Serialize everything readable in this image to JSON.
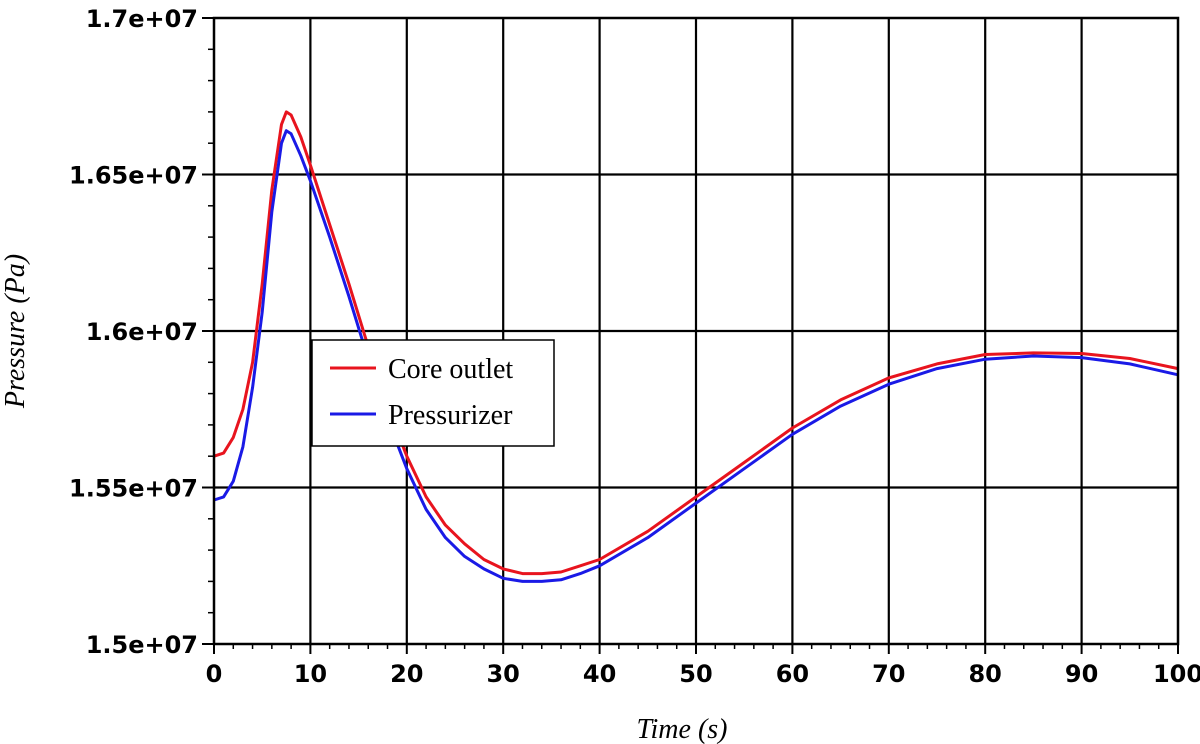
{
  "chart_data": {
    "type": "line",
    "title": "",
    "xlabel": "Time (s)",
    "ylabel": "Pressure (Pa)",
    "xlim": [
      0,
      100
    ],
    "ylim": [
      15000000,
      17000000
    ],
    "x_ticks": [
      0,
      10,
      20,
      30,
      40,
      50,
      60,
      70,
      80,
      90,
      100
    ],
    "x_tick_labels": [
      "0",
      "10",
      "20",
      "30",
      "40",
      "50",
      "60",
      "70",
      "80",
      "90",
      "100"
    ],
    "y_ticks": [
      15000000,
      15500000,
      16000000,
      16500000,
      17000000
    ],
    "y_tick_labels": [
      "1.5e+07",
      "1.55e+07",
      "1.6e+07",
      "1.65e+07",
      "1.7e+07"
    ],
    "grid": true,
    "legend_position": "middle-left",
    "series": [
      {
        "name": "Core outlet",
        "color": "#e8141e",
        "x": [
          0,
          1,
          2,
          3,
          4,
          5,
          6,
          7,
          7.5,
          8,
          9,
          10,
          12,
          14,
          16,
          18,
          20,
          22,
          24,
          26,
          28,
          30,
          32,
          34,
          36,
          38,
          40,
          45,
          50,
          55,
          60,
          65,
          70,
          75,
          80,
          85,
          90,
          95,
          100
        ],
        "y": [
          15600000,
          15610000,
          15660000,
          15750000,
          15900000,
          16150000,
          16450000,
          16660000,
          16700000,
          16690000,
          16620000,
          16530000,
          16340000,
          16150000,
          15950000,
          15760000,
          15600000,
          15470000,
          15380000,
          15320000,
          15270000,
          15240000,
          15225000,
          15225000,
          15230000,
          15250000,
          15270000,
          15360000,
          15470000,
          15580000,
          15690000,
          15780000,
          15850000,
          15895000,
          15925000,
          15930000,
          15928000,
          15912000,
          15880000
        ]
      },
      {
        "name": "Pressurizer",
        "color": "#1a1ae6",
        "x": [
          0,
          1,
          2,
          3,
          4,
          5,
          6,
          7,
          7.5,
          8,
          9,
          10,
          12,
          14,
          16,
          18,
          20,
          22,
          24,
          26,
          28,
          30,
          32,
          34,
          36,
          38,
          40,
          45,
          50,
          55,
          60,
          65,
          70,
          75,
          80,
          85,
          90,
          95,
          100
        ],
        "y": [
          15460000,
          15470000,
          15520000,
          15630000,
          15820000,
          16060000,
          16380000,
          16600000,
          16640000,
          16630000,
          16560000,
          16480000,
          16300000,
          16110000,
          15910000,
          15720000,
          15560000,
          15430000,
          15340000,
          15280000,
          15240000,
          15210000,
          15200000,
          15200000,
          15205000,
          15225000,
          15250000,
          15340000,
          15450000,
          15560000,
          15670000,
          15760000,
          15830000,
          15880000,
          15910000,
          15920000,
          15915000,
          15895000,
          15860000
        ]
      }
    ]
  }
}
